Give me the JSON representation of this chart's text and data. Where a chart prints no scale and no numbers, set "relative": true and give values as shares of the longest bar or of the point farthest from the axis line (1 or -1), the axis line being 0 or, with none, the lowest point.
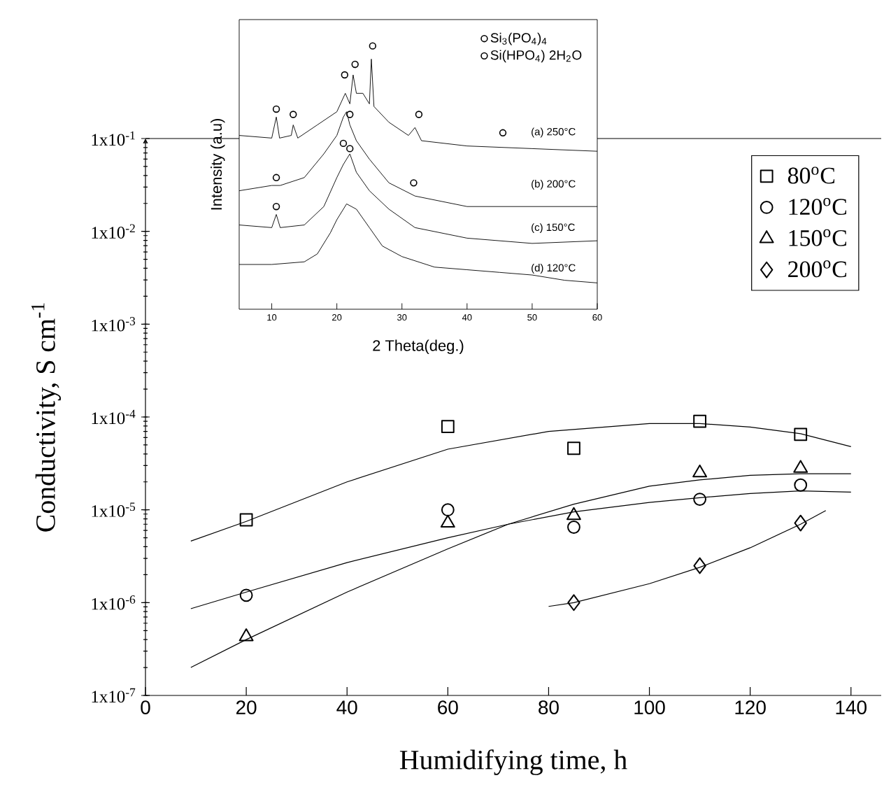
{
  "chart_data": [
    {
      "type": "scatter",
      "xlabel": "Humidifying time, h",
      "ylabel": "Conductivity, S cm$^{-1}$",
      "log": "y",
      "xlim": [
        0,
        146
      ],
      "ylim": [
        1e-07,
        0.1
      ],
      "xticks": [
        0,
        20,
        40,
        60,
        80,
        100,
        120,
        140
      ],
      "yticks": [
        {
          "value": 1e-07,
          "label": "1x10$^{-7}$"
        },
        {
          "value": 1e-06,
          "label": "1x10$^{-6}$"
        },
        {
          "value": 1e-05,
          "label": "1x10$^{-5}$"
        },
        {
          "value": 0.0001,
          "label": "1x10$^{-4}$"
        },
        {
          "value": 0.001,
          "label": "1x10$^{-3}$"
        },
        {
          "value": 0.01,
          "label": "1x10$^{-2}$"
        },
        {
          "value": 0.1,
          "label": "1x10$^{-1}$"
        }
      ],
      "legend": "top right",
      "series": [
        {
          "name": "80$^{o}$C",
          "color": "#000000",
          "marker": "square",
          "x": [
            20,
            60,
            85,
            110,
            130
          ],
          "values": [
            7.8e-06,
            7.9e-05,
            4.6e-05,
            9e-05,
            6.5e-05
          ]
        },
        {
          "name": "120$^{o}$C",
          "color": "#000000",
          "marker": "circle",
          "x": [
            20,
            60,
            85,
            110,
            130
          ],
          "values": [
            1.2e-06,
            1e-05,
            6.5e-06,
            1.3e-05,
            1.85e-05
          ]
        },
        {
          "name": "150$^{o}$C",
          "color": "#000000",
          "marker": "triangle",
          "x": [
            20,
            60,
            85,
            110,
            130
          ],
          "values": [
            4.3e-07,
            7.2e-06,
            8.7e-06,
            2.5e-05,
            2.8e-05
          ]
        },
        {
          "name": "200$^{o}$C",
          "color": "#000000",
          "marker": "diamond",
          "x": [
            85,
            110,
            130
          ],
          "values": [
            1e-06,
            2.5e-06,
            7.2e-06
          ]
        },
        {
          "type": "line",
          "color": "#000000",
          "x": [
            9,
            20,
            40,
            60,
            80,
            100,
            110,
            120,
            130,
            140
          ],
          "values": [
            4.6e-06,
            7.5e-06,
            2e-05,
            4.5e-05,
            7e-05,
            8.5e-05,
            8.5e-05,
            7.8e-05,
            6.6e-05,
            4.8e-05
          ]
        },
        {
          "type": "line",
          "color": "#000000",
          "x": [
            9,
            20,
            40,
            60,
            72,
            85,
            100,
            110,
            120,
            130,
            140
          ],
          "values": [
            8.6e-07,
            1.3e-06,
            2.7e-06,
            5e-06,
            7e-06,
            9.5e-06,
            1.2e-05,
            1.35e-05,
            1.5e-05,
            1.6e-05,
            1.55e-05
          ]
        },
        {
          "type": "line",
          "color": "#000000",
          "x": [
            9,
            20,
            40,
            60,
            72,
            85,
            100,
            110,
            120,
            130,
            140
          ],
          "values": [
            2e-07,
            4e-07,
            1.3e-06,
            3.8e-06,
            7e-06,
            1.15e-05,
            1.8e-05,
            2.1e-05,
            2.35e-05,
            2.45e-05,
            2.45e-05
          ]
        },
        {
          "type": "line",
          "color": "#000000",
          "x": [
            80,
            85,
            100,
            110,
            120,
            130,
            135
          ],
          "values": [
            9.1e-07,
            1e-06,
            1.6e-06,
            2.4e-06,
            3.9e-06,
            7e-06,
            9.8e-06
          ]
        }
      ]
    },
    {
      "type": "line",
      "relative": true,
      "tick_labels": "x",
      "xlabel": "2 Theta(deg.)",
      "ylabel": "Intensity (a.u)",
      "xlim": [
        5,
        60
      ],
      "xticks": [
        10,
        20,
        30,
        40,
        50,
        60
      ],
      "legend": "top right",
      "annotations": [
        "(a) 250°C",
        "(b) 200°C",
        "(c) 150°C",
        "(d) 120°C"
      ],
      "series": [
        {
          "color": "#000000",
          "x": [
            5,
            10,
            10.7,
            11.2,
            13,
            13.3,
            14,
            17,
            20,
            21.3,
            22,
            22.5,
            23,
            24,
            25,
            25.3,
            25.7,
            28,
            31,
            32,
            33,
            40,
            50,
            60
          ],
          "values": [
            0.66,
            0.65,
            0.73,
            0.65,
            0.66,
            0.7,
            0.65,
            0.7,
            0.75,
            0.82,
            0.78,
            0.89,
            0.82,
            0.82,
            0.78,
            0.95,
            0.77,
            0.71,
            0.66,
            0.69,
            0.64,
            0.62,
            0.61,
            0.6
          ]
        },
        {
          "color": "#000000",
          "x": [
            5,
            10,
            10.7,
            11.3,
            15,
            18,
            20,
            21,
            21.5,
            22,
            23,
            25,
            28,
            32,
            40,
            50,
            60
          ],
          "values": [
            0.45,
            0.47,
            0.47,
            0.47,
            0.5,
            0.59,
            0.66,
            0.73,
            0.75,
            0.7,
            0.64,
            0.57,
            0.48,
            0.43,
            0.39,
            0.39,
            0.39
          ]
        },
        {
          "color": "#000000",
          "x": [
            5,
            10,
            10.7,
            11.3,
            15,
            18,
            20,
            21,
            22,
            23,
            25,
            28,
            32,
            40,
            50,
            60
          ],
          "values": [
            0.32,
            0.31,
            0.36,
            0.31,
            0.32,
            0.39,
            0.5,
            0.55,
            0.59,
            0.52,
            0.45,
            0.38,
            0.31,
            0.27,
            0.25,
            0.26
          ]
        },
        {
          "color": "#000000",
          "x": [
            5,
            10,
            15,
            17,
            19,
            20,
            21.5,
            23,
            25,
            27,
            30,
            35,
            40,
            45,
            50,
            55,
            60
          ],
          "values": [
            0.17,
            0.17,
            0.18,
            0.21,
            0.29,
            0.34,
            0.4,
            0.38,
            0.31,
            0.24,
            0.2,
            0.16,
            0.15,
            0.14,
            0.13,
            0.11,
            0.1
          ]
        },
        {
          "type": "scatter",
          "name": "Si$_{3}$(PO$_{4}$)$_{4}$",
          "color": "#000000",
          "marker": "circle",
          "x": [
            10.7,
            13.3,
            21.2,
            22.8,
            25.5,
            32.6,
            45.5,
            10.7,
            21,
            10.7
          ],
          "values": [
            0.76,
            0.74,
            0.89,
            0.93,
            1.0,
            0.74,
            0.67,
            0.5,
            0.63,
            0.39
          ]
        },
        {
          "type": "scatter",
          "name": "Si(HPO$_{4}$) 2H$_{2}$O",
          "color": "#000000",
          "marker": "circle",
          "x": [
            22,
            22,
            31.8
          ],
          "values": [
            0.74,
            0.61,
            0.48
          ]
        }
      ]
    }
  ]
}
